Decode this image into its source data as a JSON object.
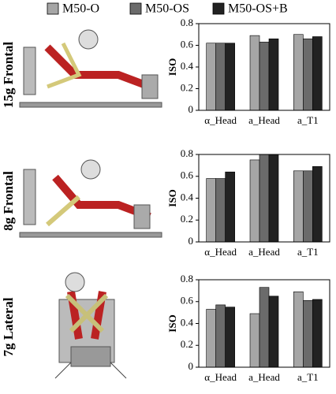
{
  "chart_data": [
    {
      "type": "bar",
      "row_label": "15g Frontal",
      "ylabel": "ISO",
      "categories": [
        "α_Head",
        "a_Head",
        "a_T1"
      ],
      "series": [
        {
          "name": "M50-O",
          "color": "#a6a6a6",
          "values": [
            0.62,
            0.69,
            0.7
          ]
        },
        {
          "name": "M50-OS",
          "color": "#6b6b6b",
          "values": [
            0.62,
            0.63,
            0.66
          ]
        },
        {
          "name": "M50-OS+B",
          "color": "#222222",
          "values": [
            0.62,
            0.66,
            0.68
          ]
        }
      ],
      "ylim": [
        0,
        0.8
      ],
      "yticks": [
        0,
        0.2,
        0.4,
        0.6,
        0.8
      ]
    },
    {
      "type": "bar",
      "row_label": "8g Frontal",
      "ylabel": "ISO",
      "categories": [
        "α_Head",
        "a_Head",
        "a_T1"
      ],
      "series": [
        {
          "name": "M50-O",
          "color": "#a6a6a6",
          "values": [
            0.58,
            0.75,
            0.65
          ]
        },
        {
          "name": "M50-OS",
          "color": "#6b6b6b",
          "values": [
            0.58,
            0.8,
            0.65
          ]
        },
        {
          "name": "M50-OS+B",
          "color": "#222222",
          "values": [
            0.64,
            0.8,
            0.69
          ]
        }
      ],
      "ylim": [
        0,
        0.8
      ],
      "yticks": [
        0,
        0.2,
        0.4,
        0.6,
        0.8
      ]
    },
    {
      "type": "bar",
      "row_label": "7g Lateral",
      "ylabel": "ISO",
      "categories": [
        "α_Head",
        "a_Head",
        "a_T1"
      ],
      "series": [
        {
          "name": "M50-O",
          "color": "#a6a6a6",
          "values": [
            0.53,
            0.49,
            0.69
          ]
        },
        {
          "name": "M50-OS",
          "color": "#6b6b6b",
          "values": [
            0.57,
            0.73,
            0.61
          ]
        },
        {
          "name": "M50-OS+B",
          "color": "#222222",
          "values": [
            0.55,
            0.65,
            0.62
          ]
        }
      ],
      "ylim": [
        0,
        0.8
      ],
      "yticks": [
        0,
        0.2,
        0.4,
        0.6,
        0.8
      ]
    }
  ]
}
